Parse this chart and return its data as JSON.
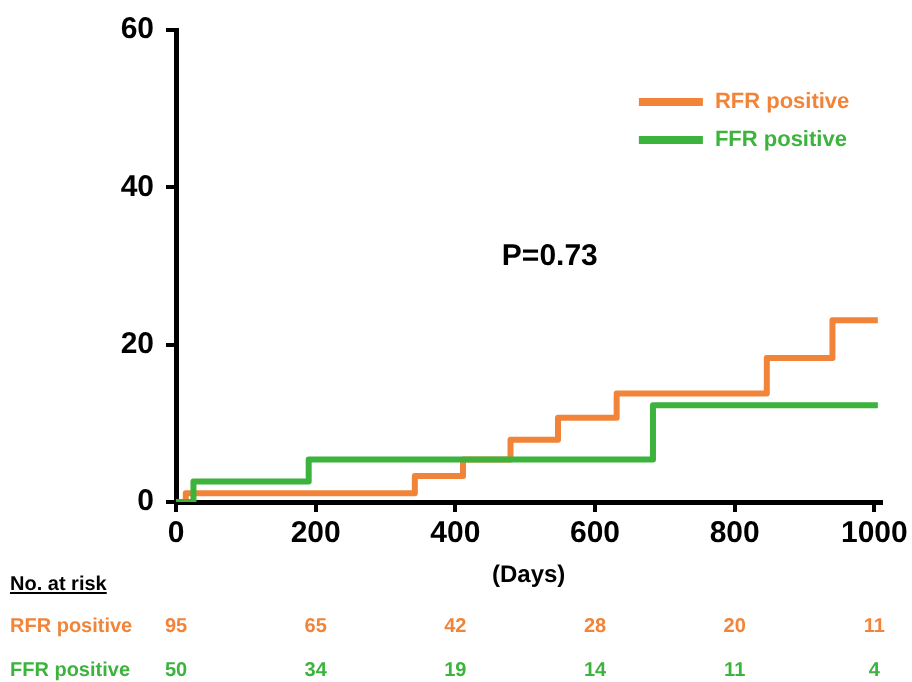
{
  "chart_data": {
    "type": "step",
    "xlabel": "(Days)",
    "xlim": [
      0,
      1010
    ],
    "xticks": [
      0,
      200,
      400,
      600,
      800,
      1000
    ],
    "ylim": [
      0,
      60
    ],
    "yticks": [
      0,
      20,
      40,
      60
    ],
    "legend": "top right",
    "annotations": [
      "P=0.73",
      "No. at risk",
      "95",
      "65",
      "42",
      "28",
      "20",
      "11",
      "50",
      "34",
      "19",
      "14",
      "11",
      "4"
    ],
    "series": [
      {
        "name": "RFR positive",
        "color": "#f28439",
        "x": [
          0,
          14,
          342,
          411,
          479,
          547,
          631,
          846,
          940,
          1005
        ],
        "values": [
          0,
          1.1,
          3.3,
          5.4,
          7.9,
          10.7,
          13.8,
          18.3,
          23.1,
          23.1
        ]
      },
      {
        "name": "FFR positive",
        "color": "#3cb33c",
        "x": [
          0,
          25,
          190,
          683,
          1005
        ],
        "values": [
          0,
          2.6,
          5.4,
          12.3,
          12.3
        ]
      }
    ]
  }
}
